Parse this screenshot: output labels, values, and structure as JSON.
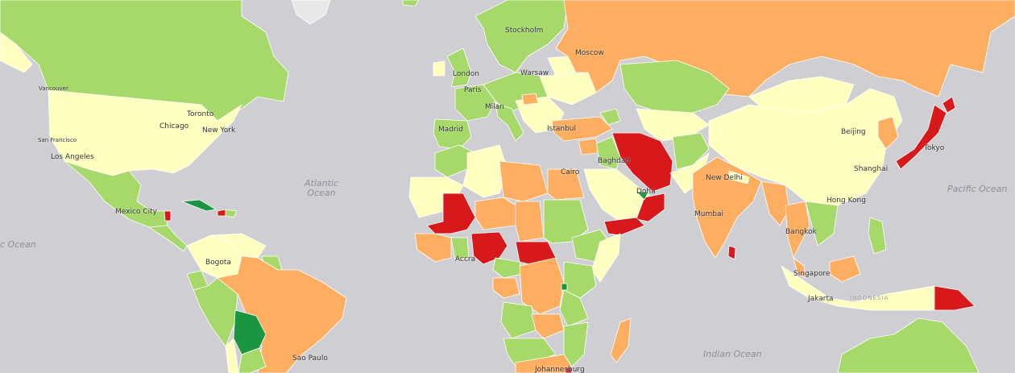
{
  "colors": {
    "ocean": "#cfcfd3",
    "very_high": "#1a9641",
    "high": "#a6d96a",
    "medium": "#ffffbf",
    "low": "#fdae61",
    "very_low": "#d7191c",
    "no_data": "#e8e8e8"
  },
  "oceans": {
    "atlantic": "Atlantic\nOcean",
    "pacific_west": "c Ocean",
    "pacific_east": "Pacific Ocean",
    "indian": "Indian Ocean"
  },
  "cities": {
    "vancouver": "Vancouver",
    "toronto": "Toronto",
    "chicago": "Chicago",
    "new_york": "New York",
    "san_francisco": "San Francisco",
    "los_angeles": "Los Angeles",
    "mexico_city": "Mexico City",
    "bogota": "Bogota",
    "sao_paulo": "Sao Paulo",
    "stockholm": "Stockholm",
    "london": "London",
    "paris": "Paris",
    "warsaw": "Warsaw",
    "milan": "Milan",
    "madrid": "Madrid",
    "moscow": "Moscow",
    "istanbul": "Istanbul",
    "cairo": "Cairo",
    "baghdad": "Baghdad",
    "doha": "Doha",
    "accra": "Accra",
    "johannesburg": "Johannesburg",
    "new_delhi": "New Delhi",
    "mumbai": "Mumbai",
    "beijing": "Beijing",
    "tokyo": "Tokyo",
    "shanghai": "Shanghai",
    "hong_kong": "Hong Kong",
    "bangkok": "Bangkok",
    "singapore": "Singapore",
    "jakarta": "Jakarta",
    "indonesia": "INDONESIA"
  }
}
